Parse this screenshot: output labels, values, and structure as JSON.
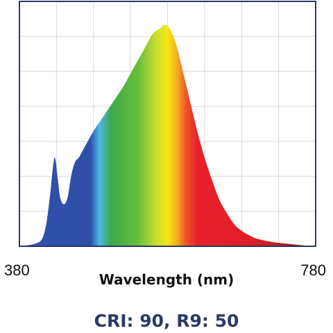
{
  "chart_data": {
    "type": "area",
    "title": "",
    "xlabel": "Wavelength (nm)",
    "ylabel": "",
    "xlim": [
      380,
      780
    ],
    "ylim": [
      0,
      1
    ],
    "x_tick_labels": [
      "380",
      "780"
    ],
    "grid": true,
    "legend": "none",
    "series": [
      {
        "x": [
          380,
          400,
          410,
          415,
          418,
          422,
          425,
          428,
          432,
          435,
          440,
          445,
          450,
          455,
          460,
          465,
          470,
          480,
          490,
          500,
          510,
          520,
          530,
          540,
          550,
          560,
          570,
          575,
          580,
          585,
          590,
          595,
          600,
          605,
          610,
          615,
          620,
          625,
          630,
          640,
          650,
          660,
          670,
          680,
          690,
          700,
          720,
          740,
          760,
          780
        ],
        "y": [
          0.0,
          0.01,
          0.03,
          0.08,
          0.14,
          0.25,
          0.35,
          0.4,
          0.3,
          0.22,
          0.19,
          0.22,
          0.32,
          0.38,
          0.4,
          0.43,
          0.46,
          0.52,
          0.57,
          0.62,
          0.67,
          0.72,
          0.78,
          0.84,
          0.9,
          0.96,
          0.985,
          1.0,
          0.995,
          0.97,
          0.93,
          0.87,
          0.8,
          0.73,
          0.66,
          0.59,
          0.52,
          0.46,
          0.4,
          0.3,
          0.21,
          0.15,
          0.1,
          0.07,
          0.05,
          0.035,
          0.02,
          0.012,
          0.005,
          0.0
        ]
      }
    ]
  },
  "caption": {
    "text": "CRI: 90, R9: 50"
  },
  "colors": {
    "frame": "#2a3866",
    "grid": "#d9d9d9",
    "caption": "#2b3a66",
    "spectrum": [
      "#2f4fa8",
      "#2f4fa8",
      "#4db8e6",
      "#3ca84a",
      "#66bf3a",
      "#c8dc30",
      "#f5e813",
      "#f5a623",
      "#ef5a28",
      "#e8202a",
      "#e01f27",
      "#b51e25",
      "#7a1410"
    ]
  }
}
